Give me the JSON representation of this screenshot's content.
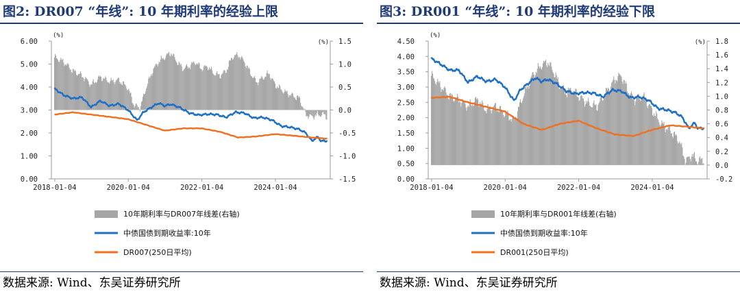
{
  "charts": [
    {
      "title": "图2:  DR007 “年线”: 10 年期利率的经验上限",
      "source": "数据来源:  Wind、东吴证券研究所",
      "chart_data": {
        "type": "line",
        "title": "DR007 “年线”: 10 年期利率的经验上限",
        "x_range": [
          "2017-12-01",
          "2025-07-01"
        ],
        "x_ticks": [
          "2018-01-04",
          "2020-01-04",
          "2022-01-04",
          "2024-01-04"
        ],
        "y_left": {
          "unit": "(%)",
          "range": [
            0,
            6
          ],
          "ticks": [
            "0.00",
            "1.00",
            "2.00",
            "3.00",
            "4.00",
            "5.00",
            "6.00"
          ]
        },
        "y_right": {
          "unit": "(%)",
          "range": [
            -1.5,
            1.5
          ],
          "ticks": [
            "-1.5",
            "-1.0",
            "-0.5",
            "0.0",
            "0.5",
            "1.0",
            "1.5"
          ]
        },
        "series": [
          {
            "name": "10年期利率与DR007年线差(右轴)",
            "type": "bar",
            "axis": "right",
            "color": "#a6a6a6",
            "points": [
              [
                "2018-01",
                1.15
              ],
              [
                "2018-04",
                1.05
              ],
              [
                "2018-07",
                0.85
              ],
              [
                "2018-10",
                0.75
              ],
              [
                "2019-01",
                0.55
              ],
              [
                "2019-04",
                0.72
              ],
              [
                "2019-07",
                0.62
              ],
              [
                "2019-10",
                0.65
              ],
              [
                "2020-01",
                0.48
              ],
              [
                "2020-03",
                0.1
              ],
              [
                "2020-05",
                0.05
              ],
              [
                "2020-07",
                0.5
              ],
              [
                "2020-09",
                0.85
              ],
              [
                "2020-11",
                1.05
              ],
              [
                "2021-01",
                1.15
              ],
              [
                "2021-03",
                1.25
              ],
              [
                "2021-05",
                1.05
              ],
              [
                "2021-07",
                0.9
              ],
              [
                "2021-09",
                0.95
              ],
              [
                "2021-11",
                1.05
              ],
              [
                "2022-01",
                0.9
              ],
              [
                "2022-03",
                0.95
              ],
              [
                "2022-05",
                0.8
              ],
              [
                "2022-07",
                0.75
              ],
              [
                "2022-09",
                0.85
              ],
              [
                "2022-11",
                1.15
              ],
              [
                "2023-01",
                1.2
              ],
              [
                "2023-03",
                1.05
              ],
              [
                "2023-05",
                0.8
              ],
              [
                "2023-07",
                0.6
              ],
              [
                "2023-09",
                0.7
              ],
              [
                "2023-11",
                0.8
              ],
              [
                "2024-01",
                0.55
              ],
              [
                "2024-04",
                0.4
              ],
              [
                "2024-07",
                0.3
              ],
              [
                "2024-09",
                0.25
              ],
              [
                "2024-11",
                -0.1
              ],
              [
                "2025-01",
                -0.15
              ],
              [
                "2025-03",
                -0.1
              ],
              [
                "2025-05",
                -0.1
              ],
              [
                "2025-06",
                -0.15
              ]
            ]
          },
          {
            "name": "中债国债到期收益率:10年",
            "type": "line",
            "axis": "left",
            "color": "#1f6fc5",
            "points": [
              [
                "2018-01",
                3.93
              ],
              [
                "2018-04",
                3.65
              ],
              [
                "2018-07",
                3.5
              ],
              [
                "2018-10",
                3.55
              ],
              [
                "2019-01",
                3.12
              ],
              [
                "2019-04",
                3.4
              ],
              [
                "2019-07",
                3.18
              ],
              [
                "2019-10",
                3.27
              ],
              [
                "2020-01",
                3.0
              ],
              [
                "2020-04",
                2.55
              ],
              [
                "2020-06",
                2.9
              ],
              [
                "2020-09",
                3.15
              ],
              [
                "2020-11",
                3.3
              ],
              [
                "2021-01",
                3.18
              ],
              [
                "2021-03",
                3.25
              ],
              [
                "2021-06",
                3.1
              ],
              [
                "2021-09",
                2.87
              ],
              [
                "2021-12",
                2.78
              ],
              [
                "2022-03",
                2.82
              ],
              [
                "2022-06",
                2.8
              ],
              [
                "2022-09",
                2.68
              ],
              [
                "2022-12",
                2.9
              ],
              [
                "2023-03",
                2.87
              ],
              [
                "2023-06",
                2.65
              ],
              [
                "2023-09",
                2.68
              ],
              [
                "2023-12",
                2.56
              ],
              [
                "2024-03",
                2.3
              ],
              [
                "2024-06",
                2.25
              ],
              [
                "2024-09",
                2.15
              ],
              [
                "2024-11",
                2.0
              ],
              [
                "2025-01",
                1.65
              ],
              [
                "2025-02",
                1.75
              ],
              [
                "2025-03",
                1.82
              ],
              [
                "2025-04",
                1.65
              ],
              [
                "2025-06",
                1.65
              ]
            ]
          },
          {
            "name": "DR007(250日平均)",
            "type": "line",
            "axis": "left",
            "color": "#ee7020",
            "points": [
              [
                "2018-01",
                2.8
              ],
              [
                "2018-07",
                2.9
              ],
              [
                "2019-01",
                2.8
              ],
              [
                "2019-07",
                2.7
              ],
              [
                "2020-01",
                2.6
              ],
              [
                "2020-07",
                2.35
              ],
              [
                "2021-01",
                2.1
              ],
              [
                "2021-07",
                2.2
              ],
              [
                "2022-01",
                2.2
              ],
              [
                "2022-07",
                2.05
              ],
              [
                "2023-01",
                1.8
              ],
              [
                "2023-07",
                1.85
              ],
              [
                "2024-01",
                1.95
              ],
              [
                "2024-07",
                1.88
              ],
              [
                "2025-01",
                1.8
              ],
              [
                "2025-06",
                1.75
              ]
            ]
          }
        ]
      }
    },
    {
      "title": "图3:  DR001 “年线”: 10 年期利率的经验下限",
      "source": "数据来源:  Wind、东吴证券研究所",
      "chart_data": {
        "type": "line",
        "title": "DR001 “年线”: 10 年期利率的经验下限",
        "x_range": [
          "2017-12-01",
          "2025-07-01"
        ],
        "x_ticks": [
          "2018-01-04",
          "2020-01-04",
          "2022-01-04",
          "2024-01-04"
        ],
        "y_left": {
          "unit": "(%)",
          "range": [
            0,
            4.5
          ],
          "ticks": [
            "0.00",
            "0.50",
            "1.00",
            "1.50",
            "2.00",
            "2.50",
            "3.00",
            "3.50",
            "4.00",
            "4.50"
          ]
        },
        "y_right": {
          "unit": "(%)",
          "range": [
            -0.2,
            1.8
          ],
          "ticks": [
            "-0.2",
            "0.0",
            "0.2",
            "0.4",
            "0.6",
            "0.8",
            "1.0",
            "1.2",
            "1.4",
            "1.6",
            "1.8"
          ]
        },
        "series": [
          {
            "name": "10年期利率与DR001年线差(右轴)",
            "type": "bar",
            "axis": "right",
            "color": "#a6a6a6",
            "points": [
              [
                "2018-01",
                1.3
              ],
              [
                "2018-04",
                1.15
              ],
              [
                "2018-07",
                1.0
              ],
              [
                "2018-10",
                0.95
              ],
              [
                "2019-01",
                0.85
              ],
              [
                "2019-04",
                0.95
              ],
              [
                "2019-07",
                0.8
              ],
              [
                "2019-10",
                0.85
              ],
              [
                "2020-01",
                0.75
              ],
              [
                "2020-04",
                0.65
              ],
              [
                "2020-07",
                1.0
              ],
              [
                "2020-10",
                1.3
              ],
              [
                "2021-01",
                1.45
              ],
              [
                "2021-03",
                1.5
              ],
              [
                "2021-05",
                1.35
              ],
              [
                "2021-07",
                1.15
              ],
              [
                "2021-09",
                1.05
              ],
              [
                "2021-11",
                1.1
              ],
              [
                "2022-01",
                1.0
              ],
              [
                "2022-04",
                0.9
              ],
              [
                "2022-07",
                0.85
              ],
              [
                "2022-10",
                1.05
              ],
              [
                "2023-01",
                1.25
              ],
              [
                "2023-03",
                1.3
              ],
              [
                "2023-05",
                1.1
              ],
              [
                "2023-07",
                0.95
              ],
              [
                "2023-10",
                1.0
              ],
              [
                "2024-01",
                0.8
              ],
              [
                "2024-04",
                0.6
              ],
              [
                "2024-07",
                0.5
              ],
              [
                "2024-10",
                0.35
              ],
              [
                "2024-12",
                0.05
              ],
              [
                "2025-02",
                0.15
              ],
              [
                "2025-04",
                0.05
              ],
              [
                "2025-06",
                0.1
              ]
            ]
          },
          {
            "name": "中债国债到期收益率:10年",
            "type": "line",
            "axis": "left",
            "color": "#1f6fc5",
            "points": [
              [
                "2018-01",
                3.93
              ],
              [
                "2018-04",
                3.75
              ],
              [
                "2018-07",
                3.55
              ],
              [
                "2018-10",
                3.55
              ],
              [
                "2019-01",
                3.15
              ],
              [
                "2019-04",
                3.35
              ],
              [
                "2019-07",
                3.18
              ],
              [
                "2019-10",
                3.25
              ],
              [
                "2020-01",
                3.0
              ],
              [
                "2020-04",
                2.55
              ],
              [
                "2020-06",
                2.9
              ],
              [
                "2020-09",
                3.15
              ],
              [
                "2020-11",
                3.3
              ],
              [
                "2021-01",
                3.18
              ],
              [
                "2021-03",
                3.25
              ],
              [
                "2021-06",
                3.1
              ],
              [
                "2021-09",
                2.87
              ],
              [
                "2021-12",
                2.78
              ],
              [
                "2022-03",
                2.82
              ],
              [
                "2022-06",
                2.8
              ],
              [
                "2022-09",
                2.68
              ],
              [
                "2022-12",
                2.9
              ],
              [
                "2023-03",
                2.87
              ],
              [
                "2023-06",
                2.65
              ],
              [
                "2023-09",
                2.68
              ],
              [
                "2023-12",
                2.56
              ],
              [
                "2024-03",
                2.3
              ],
              [
                "2024-06",
                2.25
              ],
              [
                "2024-09",
                2.15
              ],
              [
                "2024-11",
                2.0
              ],
              [
                "2025-01",
                1.65
              ],
              [
                "2025-02",
                1.75
              ],
              [
                "2025-03",
                1.82
              ],
              [
                "2025-04",
                1.65
              ],
              [
                "2025-06",
                1.65
              ]
            ]
          },
          {
            "name": "DR001(250日平均)",
            "type": "line",
            "axis": "left",
            "color": "#ee7020",
            "points": [
              [
                "2018-01",
                2.65
              ],
              [
                "2018-07",
                2.68
              ],
              [
                "2019-01",
                2.5
              ],
              [
                "2019-07",
                2.35
              ],
              [
                "2020-01",
                2.2
              ],
              [
                "2020-07",
                1.8
              ],
              [
                "2021-01",
                1.6
              ],
              [
                "2021-07",
                1.8
              ],
              [
                "2022-01",
                1.9
              ],
              [
                "2022-07",
                1.65
              ],
              [
                "2023-01",
                1.45
              ],
              [
                "2023-07",
                1.4
              ],
              [
                "2024-01",
                1.6
              ],
              [
                "2024-07",
                1.75
              ],
              [
                "2025-01",
                1.7
              ],
              [
                "2025-06",
                1.65
              ]
            ]
          }
        ]
      }
    }
  ]
}
